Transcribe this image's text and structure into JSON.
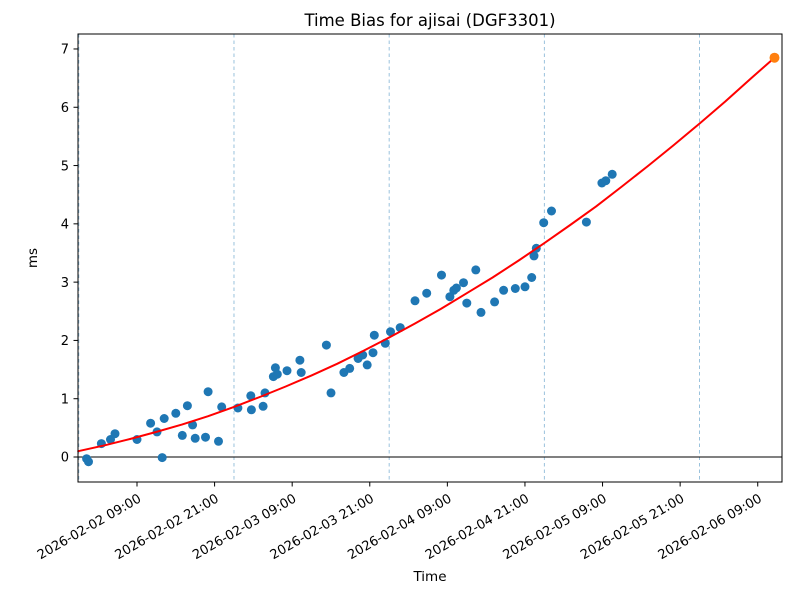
{
  "figure": {
    "background": "#ffffff"
  },
  "chart_data": {
    "type": "scatter",
    "title": "Time Bias for ajisai (DGF3301)",
    "xlabel": "Time",
    "ylabel": "ms",
    "x_axis": {
      "unit": "hours since 2026-02-02 00:00",
      "range_hours": [
        -0.1,
        108.8
      ],
      "tick_hours": [
        9,
        21,
        33,
        45,
        57,
        69,
        81,
        93,
        105
      ],
      "tick_labels": [
        "2026-02-02 09:00",
        "2026-02-02 21:00",
        "2026-02-03 09:00",
        "2026-02-03 21:00",
        "2026-02-04 09:00",
        "2026-02-04 21:00",
        "2026-02-05 09:00",
        "2026-02-05 21:00",
        "2026-02-06 09:00"
      ],
      "day_boundary_hours": [
        0,
        24,
        48,
        72,
        96
      ]
    },
    "y_axis": {
      "range": [
        -0.43,
        7.26
      ],
      "ticks": [
        0,
        1,
        2,
        3,
        4,
        5,
        6,
        7
      ]
    },
    "zero_line": true,
    "gridline_color": "#1f77b4",
    "gridline_opacity": 0.5,
    "series": [
      {
        "name": "time-bias-observations",
        "kind": "scatter",
        "color": "#1f77b4",
        "marker_radius": 4.5,
        "points_hours_ms": [
          [
            1.2,
            -0.03
          ],
          [
            1.5,
            -0.08
          ],
          [
            3.5,
            0.23
          ],
          [
            4.9,
            0.3
          ],
          [
            5.6,
            0.4
          ],
          [
            9.0,
            0.3
          ],
          [
            11.1,
            0.58
          ],
          [
            12.1,
            0.43
          ],
          [
            12.9,
            -0.01
          ],
          [
            13.2,
            0.66
          ],
          [
            15.0,
            0.75
          ],
          [
            16.0,
            0.37
          ],
          [
            16.8,
            0.88
          ],
          [
            17.6,
            0.55
          ],
          [
            18.0,
            0.32
          ],
          [
            19.6,
            0.34
          ],
          [
            20.0,
            1.12
          ],
          [
            21.6,
            0.27
          ],
          [
            22.1,
            0.86
          ],
          [
            24.6,
            0.84
          ],
          [
            26.6,
            1.05
          ],
          [
            26.7,
            0.81
          ],
          [
            28.5,
            0.87
          ],
          [
            28.8,
            1.1
          ],
          [
            30.1,
            1.38
          ],
          [
            30.4,
            1.53
          ],
          [
            30.7,
            1.42
          ],
          [
            32.2,
            1.48
          ],
          [
            34.2,
            1.66
          ],
          [
            34.4,
            1.45
          ],
          [
            38.3,
            1.92
          ],
          [
            39.0,
            1.1
          ],
          [
            41.0,
            1.45
          ],
          [
            41.9,
            1.52
          ],
          [
            43.2,
            1.69
          ],
          [
            43.9,
            1.75
          ],
          [
            44.6,
            1.58
          ],
          [
            45.5,
            1.79
          ],
          [
            45.7,
            2.09
          ],
          [
            47.4,
            1.95
          ],
          [
            48.2,
            2.15
          ],
          [
            49.7,
            2.22
          ],
          [
            52.0,
            2.68
          ],
          [
            53.8,
            2.81
          ],
          [
            56.1,
            3.12
          ],
          [
            57.4,
            2.75
          ],
          [
            58.0,
            2.86
          ],
          [
            58.4,
            2.9
          ],
          [
            59.5,
            2.99
          ],
          [
            60.0,
            2.64
          ],
          [
            61.4,
            3.21
          ],
          [
            62.2,
            2.48
          ],
          [
            64.3,
            2.66
          ],
          [
            65.7,
            2.86
          ],
          [
            67.5,
            2.89
          ],
          [
            69.0,
            2.92
          ],
          [
            70.05,
            3.08
          ],
          [
            70.4,
            3.45
          ],
          [
            70.75,
            3.58
          ],
          [
            71.9,
            4.02
          ],
          [
            73.1,
            4.22
          ],
          [
            78.5,
            4.03
          ],
          [
            80.9,
            4.7
          ],
          [
            81.5,
            4.74
          ],
          [
            82.5,
            4.85
          ]
        ]
      },
      {
        "name": "fit-curve",
        "kind": "line",
        "color": "#ff0000",
        "width": 2,
        "points_hours_ms": [
          [
            -0.1,
            0.1
          ],
          [
            4,
            0.2
          ],
          [
            8,
            0.31
          ],
          [
            12,
            0.43
          ],
          [
            16,
            0.56
          ],
          [
            20,
            0.7
          ],
          [
            24,
            0.86
          ],
          [
            28,
            1.03
          ],
          [
            32,
            1.21
          ],
          [
            36,
            1.4
          ],
          [
            40,
            1.6
          ],
          [
            44,
            1.82
          ],
          [
            48,
            2.05
          ],
          [
            52,
            2.29
          ],
          [
            56,
            2.54
          ],
          [
            60,
            2.81
          ],
          [
            64,
            3.08
          ],
          [
            68,
            3.37
          ],
          [
            72,
            3.67
          ],
          [
            76,
            3.98
          ],
          [
            80,
            4.3
          ],
          [
            84,
            4.64
          ],
          [
            88,
            4.99
          ],
          [
            92,
            5.35
          ],
          [
            96,
            5.72
          ],
          [
            100,
            6.1
          ],
          [
            104,
            6.5
          ],
          [
            107.6,
            6.85
          ]
        ]
      },
      {
        "name": "predicted-point",
        "kind": "scatter",
        "color": "#ff7f0e",
        "marker_radius": 5,
        "points_hours_ms": [
          [
            107.6,
            6.85
          ]
        ]
      }
    ]
  }
}
